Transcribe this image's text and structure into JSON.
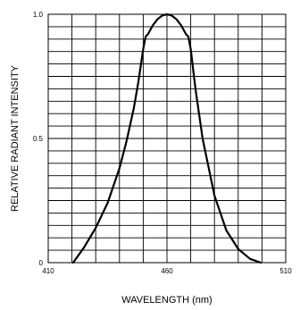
{
  "chart_data": {
    "type": "line",
    "title": "",
    "xlabel": "WAVELENGTH  (nm)",
    "ylabel": "RELATIVE RADIANT INTENSITY",
    "xlim": [
      410,
      510
    ],
    "ylim": [
      0,
      1.0
    ],
    "x_ticks": [
      {
        "value": 410,
        "label": "410"
      },
      {
        "value": 460,
        "label": "460"
      },
      {
        "value": 510,
        "label": "510"
      }
    ],
    "y_ticks": [
      {
        "value": 0,
        "label": "0"
      },
      {
        "value": 0.5,
        "label": "0.5"
      },
      {
        "value": 1.0,
        "label": "1.0"
      }
    ],
    "grid": true,
    "grid_divisions": {
      "x": 10,
      "y": 20
    },
    "line_color": "#000000",
    "series": [
      {
        "x": [
          420.5,
          425,
          430,
          435,
          440,
          443,
          446,
          448,
          450,
          451,
          452,
          454,
          456,
          458,
          460,
          462,
          464,
          466,
          468,
          469,
          470,
          472,
          475,
          480,
          485,
          490,
          495,
          499.5
        ],
        "y": [
          0.0,
          0.06,
          0.14,
          0.24,
          0.38,
          0.49,
          0.62,
          0.73,
          0.86,
          0.91,
          0.92,
          0.955,
          0.98,
          0.995,
          1.0,
          0.995,
          0.98,
          0.955,
          0.92,
          0.91,
          0.86,
          0.7,
          0.5,
          0.27,
          0.13,
          0.055,
          0.015,
          0.0
        ]
      }
    ]
  }
}
